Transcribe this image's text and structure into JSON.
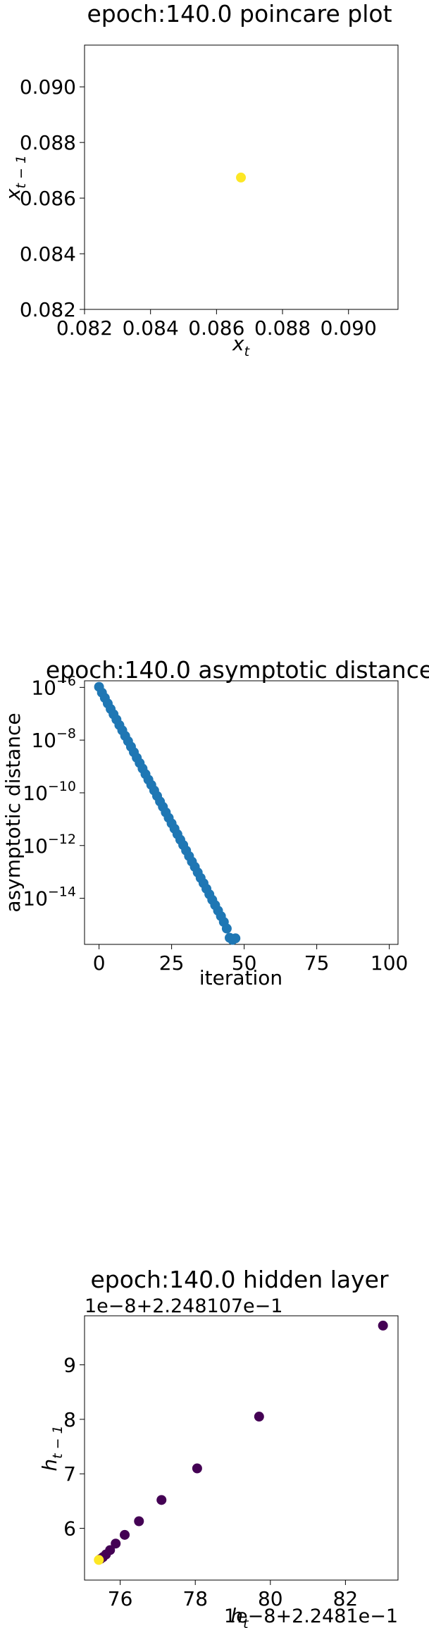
{
  "chart_data": [
    {
      "type": "scatter",
      "title": "epoch:140.0 poincare plot",
      "xlabel": "x",
      "xlabel_sub": "t",
      "ylabel": "x",
      "ylabel_sub": "t − 1",
      "xlim": [
        0.082,
        0.0915
      ],
      "ylim": [
        0.082,
        0.0915
      ],
      "xticks": [
        0.082,
        0.084,
        0.086,
        0.088,
        0.09
      ],
      "xtick_labels": [
        "0.082",
        "0.084",
        "0.086",
        "0.088",
        "0.090"
      ],
      "yticks": [
        0.082,
        0.084,
        0.086,
        0.088,
        0.09
      ],
      "ytick_labels": [
        "0.082",
        "0.084",
        "0.086",
        "0.088",
        "0.090"
      ],
      "grid": false,
      "points": [
        {
          "x": 0.08674,
          "y": 0.08674
        }
      ],
      "colors": {
        "point": "#fde725"
      }
    },
    {
      "type": "scatter",
      "title": "epoch:140.0 asymptotic distance",
      "xlabel": "iteration",
      "ylabel": "asymptotic distance",
      "yscale": "log",
      "xlim": [
        -5,
        103
      ],
      "ylim_log10": [
        -15.75,
        -5.75
      ],
      "xticks": [
        0,
        25,
        50,
        75,
        100
      ],
      "xtick_labels": [
        "0",
        "25",
        "50",
        "75",
        "100"
      ],
      "yticks_log10": [
        -6,
        -8,
        -10,
        -12,
        -14
      ],
      "ytick_labels": [
        {
          "base": "10",
          "exp": "−6"
        },
        {
          "base": "10",
          "exp": "−8"
        },
        {
          "base": "10",
          "exp": "−10"
        },
        {
          "base": "10",
          "exp": "−12"
        },
        {
          "base": "10",
          "exp": "−14"
        }
      ],
      "grid": false,
      "x": [
        0,
        1,
        2,
        3,
        4,
        5,
        6,
        7,
        8,
        9,
        10,
        11,
        12,
        13,
        14,
        15,
        16,
        17,
        18,
        19,
        20,
        21,
        22,
        23,
        24,
        25,
        26,
        27,
        28,
        29,
        30,
        31,
        32,
        33,
        34,
        35,
        36,
        37,
        38,
        39,
        40,
        41,
        42,
        43,
        44,
        45,
        46,
        47
      ],
      "y_log10": [
        -5.98,
        -6.2,
        -6.4,
        -6.61,
        -6.82,
        -7.02,
        -7.22,
        -7.43,
        -7.63,
        -7.84,
        -8.04,
        -8.25,
        -8.46,
        -8.67,
        -8.87,
        -9.08,
        -9.29,
        -9.5,
        -9.7,
        -9.91,
        -10.12,
        -10.33,
        -10.53,
        -10.74,
        -10.95,
        -11.16,
        -11.36,
        -11.57,
        -11.78,
        -11.98,
        -12.19,
        -12.4,
        -12.61,
        -12.81,
        -13.02,
        -13.23,
        -13.43,
        -13.64,
        -13.85,
        -14.06,
        -14.26,
        -14.47,
        -14.68,
        -14.9,
        -15.15,
        -15.5,
        -15.58,
        -15.52
      ],
      "colors": {
        "point": "#1f77b4"
      }
    },
    {
      "type": "scatter",
      "title": "epoch:140.0 hidden layer",
      "xlabel": "h",
      "xlabel_sub": "t",
      "ylabel": "h",
      "ylabel_sub": "t − 1",
      "y_offset_text": "1e−8+2.248107e−1",
      "x_offset_text": "1e−8+2.2481e−1",
      "xlim": [
        75.05,
        83.4
      ],
      "ylim": [
        5.05,
        9.9
      ],
      "xticks": [
        76,
        78,
        80,
        82
      ],
      "xtick_labels": [
        "76",
        "78",
        "80",
        "82"
      ],
      "yticks": [
        6,
        7,
        8,
        9
      ],
      "ytick_labels": [
        "6",
        "7",
        "8",
        "9"
      ],
      "grid": false,
      "points": [
        {
          "x": 83.0,
          "y": 9.72
        },
        {
          "x": 79.7,
          "y": 8.05
        },
        {
          "x": 78.05,
          "y": 7.1
        },
        {
          "x": 77.1,
          "y": 6.52
        },
        {
          "x": 76.5,
          "y": 6.13
        },
        {
          "x": 76.12,
          "y": 5.88
        },
        {
          "x": 75.88,
          "y": 5.72
        },
        {
          "x": 75.73,
          "y": 5.6
        },
        {
          "x": 75.62,
          "y": 5.52
        },
        {
          "x": 75.54,
          "y": 5.47
        },
        {
          "x": 75.48,
          "y": 5.44
        },
        {
          "x": 75.43,
          "y": 5.42
        }
      ],
      "colors": {
        "early": "#440154",
        "late": "#fde725"
      }
    }
  ]
}
